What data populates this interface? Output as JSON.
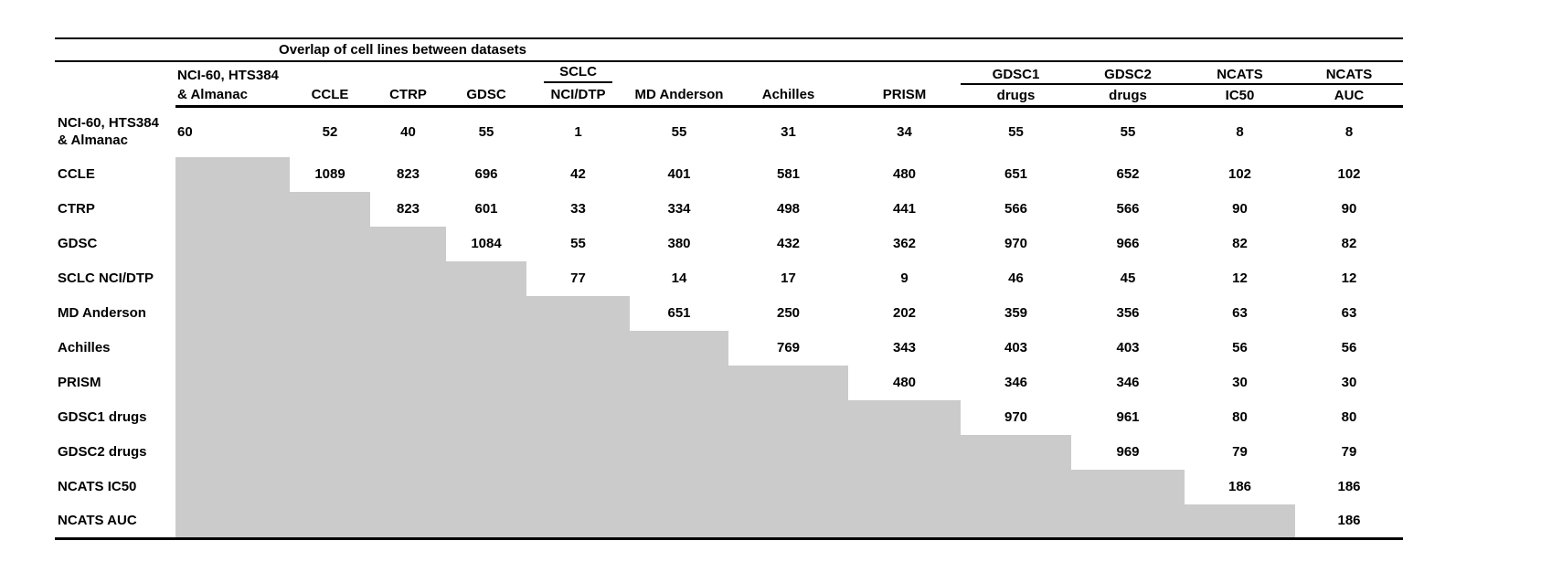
{
  "table": {
    "title": "Overlap of cell lines between datasets",
    "shade_color": "#cbcbcb",
    "columns": [
      {
        "top": "NCI-60, HTS384",
        "bottom": "& Almanac"
      },
      {
        "top": "",
        "bottom": "CCLE"
      },
      {
        "top": "",
        "bottom": "CTRP"
      },
      {
        "top": "",
        "bottom": "GDSC"
      },
      {
        "top": "SCLC",
        "bottom": "NCI/DTP"
      },
      {
        "top": "",
        "bottom": "MD Anderson"
      },
      {
        "top": "",
        "bottom": "Achilles"
      },
      {
        "top": "",
        "bottom": "PRISM"
      },
      {
        "top": "GDSC1",
        "bottom": "drugs"
      },
      {
        "top": "GDSC2",
        "bottom": "drugs"
      },
      {
        "top": "NCATS",
        "bottom": "IC50"
      },
      {
        "top": "NCATS",
        "bottom": "AUC"
      }
    ],
    "rows": [
      {
        "label": "NCI-60, HTS384\n& Almanac",
        "values": [
          60,
          52,
          40,
          55,
          1,
          55,
          31,
          34,
          55,
          55,
          8,
          8
        ]
      },
      {
        "label": "CCLE",
        "values": [
          null,
          1089,
          823,
          696,
          42,
          401,
          581,
          480,
          651,
          652,
          102,
          102
        ]
      },
      {
        "label": "CTRP",
        "values": [
          null,
          null,
          823,
          601,
          33,
          334,
          498,
          441,
          566,
          566,
          90,
          90
        ]
      },
      {
        "label": "GDSC",
        "values": [
          null,
          null,
          null,
          1084,
          55,
          380,
          432,
          362,
          970,
          966,
          82,
          82
        ]
      },
      {
        "label": "SCLC NCI/DTP",
        "values": [
          null,
          null,
          null,
          null,
          77,
          14,
          17,
          9,
          46,
          45,
          12,
          12
        ]
      },
      {
        "label": "MD Anderson",
        "values": [
          null,
          null,
          null,
          null,
          null,
          651,
          250,
          202,
          359,
          356,
          63,
          63
        ]
      },
      {
        "label": "Achilles",
        "values": [
          null,
          null,
          null,
          null,
          null,
          null,
          769,
          343,
          403,
          403,
          56,
          56
        ]
      },
      {
        "label": "PRISM",
        "values": [
          null,
          null,
          null,
          null,
          null,
          null,
          null,
          480,
          346,
          346,
          30,
          30
        ]
      },
      {
        "label": "GDSC1 drugs",
        "values": [
          null,
          null,
          null,
          null,
          null,
          null,
          null,
          null,
          970,
          961,
          80,
          80
        ]
      },
      {
        "label": "GDSC2 drugs",
        "values": [
          null,
          null,
          null,
          null,
          null,
          null,
          null,
          null,
          null,
          969,
          79,
          79
        ]
      },
      {
        "label": "NCATS IC50",
        "values": [
          null,
          null,
          null,
          null,
          null,
          null,
          null,
          null,
          null,
          null,
          186,
          186
        ]
      },
      {
        "label": "NCATS AUC",
        "values": [
          null,
          null,
          null,
          null,
          null,
          null,
          null,
          null,
          null,
          null,
          null,
          186
        ]
      }
    ]
  }
}
